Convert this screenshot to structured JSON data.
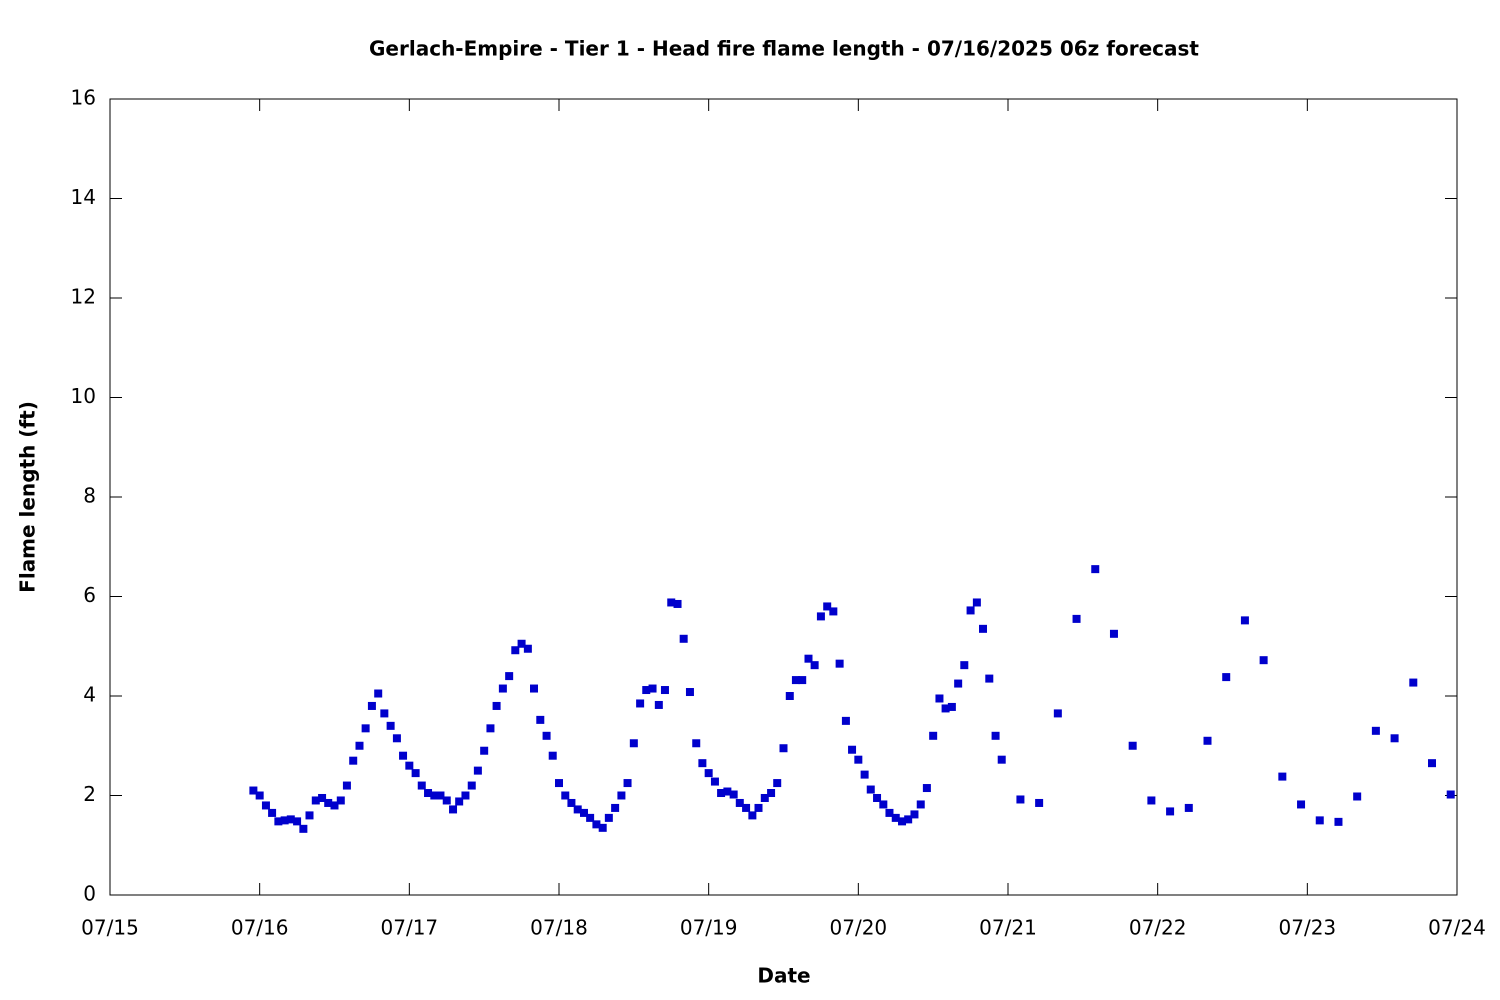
{
  "chart_data": {
    "type": "scatter",
    "title": "Gerlach-Empire - Tier 1 - Head fire flame length - 07/16/2025 06z forecast",
    "x_label": "Date",
    "y_label": "Flame length (ft)",
    "color": "#0000cc",
    "xlim": [
      15,
      24
    ],
    "xticks": [
      {
        "value": 15,
        "label": "07/15"
      },
      {
        "value": 16,
        "label": "07/16"
      },
      {
        "value": 17,
        "label": "07/17"
      },
      {
        "value": 18,
        "label": "07/18"
      },
      {
        "value": 19,
        "label": "07/19"
      },
      {
        "value": 20,
        "label": "07/20"
      },
      {
        "value": 21,
        "label": "07/21"
      },
      {
        "value": 22,
        "label": "07/22"
      },
      {
        "value": 23,
        "label": "07/23"
      },
      {
        "value": 24,
        "label": "07/24"
      }
    ],
    "ylim": [
      0,
      16
    ],
    "yticks": [
      0,
      2,
      4,
      6,
      8,
      10,
      12,
      14,
      16
    ],
    "x": [
      15.958,
      16.0,
      16.042,
      16.083,
      16.125,
      16.167,
      16.208,
      16.25,
      16.292,
      16.333,
      16.375,
      16.417,
      16.458,
      16.5,
      16.542,
      16.583,
      16.625,
      16.667,
      16.708,
      16.75,
      16.792,
      16.833,
      16.875,
      16.917,
      16.958,
      17.0,
      17.042,
      17.083,
      17.125,
      17.167,
      17.208,
      17.25,
      17.292,
      17.333,
      17.375,
      17.417,
      17.458,
      17.5,
      17.542,
      17.583,
      17.625,
      17.667,
      17.708,
      17.75,
      17.792,
      17.833,
      17.875,
      17.917,
      17.958,
      18.0,
      18.042,
      18.083,
      18.125,
      18.167,
      18.208,
      18.25,
      18.292,
      18.333,
      18.375,
      18.417,
      18.458,
      18.5,
      18.542,
      18.583,
      18.625,
      18.667,
      18.708,
      18.75,
      18.792,
      18.833,
      18.875,
      18.917,
      18.958,
      19.0,
      19.042,
      19.083,
      19.125,
      19.167,
      19.208,
      19.25,
      19.292,
      19.333,
      19.375,
      19.417,
      19.458,
      19.5,
      19.542,
      19.583,
      19.625,
      19.667,
      19.708,
      19.75,
      19.792,
      19.833,
      19.875,
      19.917,
      19.958,
      20.0,
      20.042,
      20.083,
      20.125,
      20.167,
      20.208,
      20.25,
      20.292,
      20.333,
      20.375,
      20.417,
      20.458,
      20.5,
      20.542,
      20.583,
      20.625,
      20.667,
      20.708,
      20.75,
      20.792,
      20.833,
      20.875,
      20.917,
      20.958,
      21.083,
      21.208,
      21.333,
      21.458,
      21.583,
      21.708,
      21.833,
      21.958,
      22.083,
      22.208,
      22.333,
      22.458,
      22.583,
      22.708,
      22.833,
      22.958,
      23.083,
      23.208,
      23.333,
      23.458,
      23.583,
      23.708,
      23.833,
      23.958
    ],
    "values": [
      2.1,
      2.0,
      1.8,
      1.65,
      1.48,
      1.5,
      1.52,
      1.48,
      1.33,
      1.6,
      1.9,
      1.95,
      1.85,
      1.8,
      1.9,
      2.2,
      2.7,
      3.0,
      3.35,
      3.8,
      4.05,
      3.65,
      3.4,
      3.15,
      2.8,
      2.6,
      2.45,
      2.2,
      2.05,
      2.0,
      2.0,
      1.9,
      1.72,
      1.88,
      2.0,
      2.2,
      2.5,
      2.9,
      3.35,
      3.8,
      4.15,
      4.4,
      4.92,
      5.05,
      4.95,
      4.15,
      3.52,
      3.2,
      2.8,
      2.25,
      2.0,
      1.85,
      1.72,
      1.65,
      1.55,
      1.42,
      1.35,
      1.55,
      1.75,
      2.0,
      2.25,
      3.05,
      3.85,
      4.12,
      4.15,
      3.82,
      4.12,
      5.88,
      5.85,
      5.15,
      4.08,
      3.05,
      2.65,
      2.45,
      2.28,
      2.05,
      2.08,
      2.02,
      1.85,
      1.75,
      1.6,
      1.75,
      1.95,
      2.05,
      2.25,
      2.95,
      4.0,
      4.32,
      4.32,
      4.75,
      4.62,
      5.6,
      5.8,
      5.7,
      4.65,
      3.5,
      2.92,
      2.72,
      2.42,
      2.12,
      1.95,
      1.82,
      1.65,
      1.55,
      1.48,
      1.52,
      1.62,
      1.82,
      2.15,
      3.2,
      3.95,
      3.75,
      3.78,
      4.25,
      4.62,
      5.72,
      5.88,
      5.35,
      4.35,
      3.2,
      2.72,
      1.92,
      1.85,
      3.65,
      5.55,
      6.55,
      5.25,
      3.0,
      1.9,
      1.68,
      1.75,
      3.1,
      4.38,
      5.52,
      4.72,
      2.38,
      1.82,
      1.5,
      1.47,
      1.98,
      3.3,
      3.15,
      4.27,
      2.65,
      2.02
    ]
  }
}
